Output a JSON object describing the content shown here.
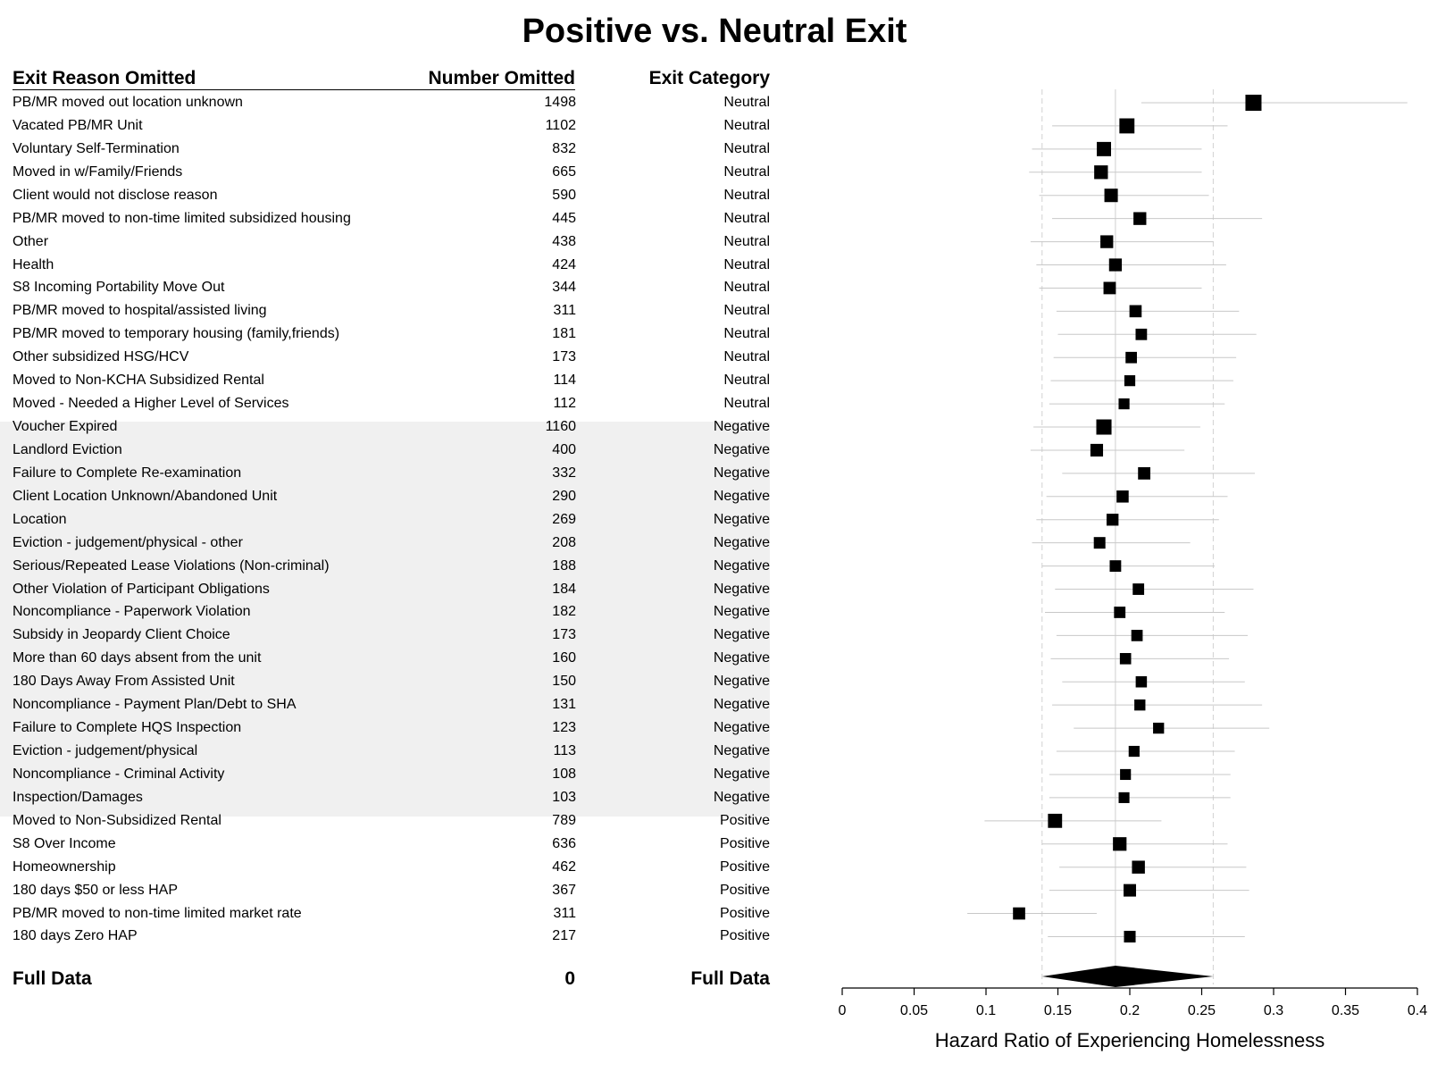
{
  "chart_data": {
    "type": "forest",
    "title": "Positive vs. Neutral Exit",
    "columns": {
      "reason": "Exit Reason Omitted",
      "number": "Number Omitted",
      "category": "Exit Category"
    },
    "rows": [
      {
        "reason": "PB/MR moved out location unknown",
        "number": "1498",
        "category": "Neutral",
        "hr": 0.286,
        "lo": 0.208,
        "hi": 0.393
      },
      {
        "reason": "Vacated PB/MR Unit",
        "number": "1102",
        "category": "Neutral",
        "hr": 0.198,
        "lo": 0.146,
        "hi": 0.268
      },
      {
        "reason": "Voluntary Self-Termination",
        "number": "832",
        "category": "Neutral",
        "hr": 0.182,
        "lo": 0.132,
        "hi": 0.25
      },
      {
        "reason": "Moved in w/Family/Friends",
        "number": "665",
        "category": "Neutral",
        "hr": 0.18,
        "lo": 0.13,
        "hi": 0.25
      },
      {
        "reason": "Client would not disclose reason",
        "number": "590",
        "category": "Neutral",
        "hr": 0.187,
        "lo": 0.137,
        "hi": 0.255
      },
      {
        "reason": "PB/MR moved to non-time limited subsidized housing",
        "number": "445",
        "category": "Neutral",
        "hr": 0.207,
        "lo": 0.146,
        "hi": 0.292
      },
      {
        "reason": "Other",
        "number": "438",
        "category": "Neutral",
        "hr": 0.184,
        "lo": 0.131,
        "hi": 0.258
      },
      {
        "reason": "Health",
        "number": "424",
        "category": "Neutral",
        "hr": 0.19,
        "lo": 0.135,
        "hi": 0.267
      },
      {
        "reason": "S8 Incoming Portability Move Out",
        "number": "344",
        "category": "Neutral",
        "hr": 0.186,
        "lo": 0.137,
        "hi": 0.25
      },
      {
        "reason": "PB/MR moved to hospital/assisted living",
        "number": "311",
        "category": "Neutral",
        "hr": 0.204,
        "lo": 0.149,
        "hi": 0.276
      },
      {
        "reason": "PB/MR moved to temporary housing (family,friends)",
        "number": "181",
        "category": "Neutral",
        "hr": 0.208,
        "lo": 0.15,
        "hi": 0.288
      },
      {
        "reason": "Other subsidized HSG/HCV",
        "number": "173",
        "category": "Neutral",
        "hr": 0.201,
        "lo": 0.147,
        "hi": 0.274
      },
      {
        "reason": "Moved to Non-KCHA Subsidized Rental",
        "number": "114",
        "category": "Neutral",
        "hr": 0.2,
        "lo": 0.145,
        "hi": 0.272
      },
      {
        "reason": "Moved - Needed a Higher Level of Services",
        "number": "112",
        "category": "Neutral",
        "hr": 0.196,
        "lo": 0.144,
        "hi": 0.266
      },
      {
        "reason": "Voucher Expired",
        "number": "1160",
        "category": "Negative",
        "hr": 0.182,
        "lo": 0.133,
        "hi": 0.249
      },
      {
        "reason": "Landlord Eviction",
        "number": "400",
        "category": "Negative",
        "hr": 0.177,
        "lo": 0.131,
        "hi": 0.238
      },
      {
        "reason": "Failure to Complete Re-examination",
        "number": "332",
        "category": "Negative",
        "hr": 0.21,
        "lo": 0.153,
        "hi": 0.287
      },
      {
        "reason": "Client Location Unknown/Abandoned Unit",
        "number": "290",
        "category": "Negative",
        "hr": 0.195,
        "lo": 0.142,
        "hi": 0.268
      },
      {
        "reason": "Location",
        "number": "269",
        "category": "Negative",
        "hr": 0.188,
        "lo": 0.135,
        "hi": 0.262
      },
      {
        "reason": "Eviction - judgement/physical - other",
        "number": "208",
        "category": "Negative",
        "hr": 0.179,
        "lo": 0.132,
        "hi": 0.242
      },
      {
        "reason": "Serious/Repeated Lease Violations (Non-criminal)",
        "number": "188",
        "category": "Negative",
        "hr": 0.19,
        "lo": 0.139,
        "hi": 0.259
      },
      {
        "reason": "Other Violation of Participant Obligations",
        "number": "184",
        "category": "Negative",
        "hr": 0.206,
        "lo": 0.148,
        "hi": 0.286
      },
      {
        "reason": "Noncompliance - Paperwork Violation",
        "number": "182",
        "category": "Negative",
        "hr": 0.193,
        "lo": 0.141,
        "hi": 0.266
      },
      {
        "reason": "Subsidy in Jeopardy Client Choice",
        "number": "173",
        "category": "Negative",
        "hr": 0.205,
        "lo": 0.149,
        "hi": 0.282
      },
      {
        "reason": "More than 60 days absent from the unit",
        "number": "160",
        "category": "Negative",
        "hr": 0.197,
        "lo": 0.145,
        "hi": 0.269
      },
      {
        "reason": "180 Days Away From Assisted Unit",
        "number": "150",
        "category": "Negative",
        "hr": 0.208,
        "lo": 0.153,
        "hi": 0.28
      },
      {
        "reason": "Noncompliance - Payment Plan/Debt to SHA",
        "number": "131",
        "category": "Negative",
        "hr": 0.207,
        "lo": 0.146,
        "hi": 0.292
      },
      {
        "reason": "Failure to Complete HQS Inspection",
        "number": "123",
        "category": "Negative",
        "hr": 0.22,
        "lo": 0.161,
        "hi": 0.297
      },
      {
        "reason": "Eviction - judgement/physical",
        "number": "113",
        "category": "Negative",
        "hr": 0.203,
        "lo": 0.149,
        "hi": 0.273
      },
      {
        "reason": "Noncompliance - Criminal Activity",
        "number": "108",
        "category": "Negative",
        "hr": 0.197,
        "lo": 0.144,
        "hi": 0.27
      },
      {
        "reason": "Inspection/Damages",
        "number": "103",
        "category": "Negative",
        "hr": 0.196,
        "lo": 0.144,
        "hi": 0.27
      },
      {
        "reason": "Moved to Non-Subsidized Rental",
        "number": "789",
        "category": "Positive",
        "hr": 0.148,
        "lo": 0.099,
        "hi": 0.222
      },
      {
        "reason": "S8 Over Income",
        "number": "636",
        "category": "Positive",
        "hr": 0.193,
        "lo": 0.139,
        "hi": 0.268
      },
      {
        "reason": "Homeownership",
        "number": "462",
        "category": "Positive",
        "hr": 0.206,
        "lo": 0.151,
        "hi": 0.281
      },
      {
        "reason": "180 days $50 or less HAP",
        "number": "367",
        "category": "Positive",
        "hr": 0.2,
        "lo": 0.144,
        "hi": 0.283
      },
      {
        "reason": "PB/MR moved to non-time limited market rate",
        "number": "311",
        "category": "Positive",
        "hr": 0.123,
        "lo": 0.087,
        "hi": 0.177
      },
      {
        "reason": "180 days Zero HAP",
        "number": "217",
        "category": "Positive",
        "hr": 0.2,
        "lo": 0.143,
        "hi": 0.28
      }
    ],
    "summary": {
      "reason": "Full Data",
      "number": "0",
      "category": "Full Data",
      "hr": 0.19,
      "lo": 0.139,
      "hi": 0.258
    },
    "x_ticks": [
      "0",
      "0.05",
      "0.1",
      "0.15",
      "0.2",
      "0.25",
      "0.3",
      "0.35",
      "0.4"
    ],
    "xlim": [
      0,
      0.4
    ],
    "xlabel": "Hazard Ratio of Experiencing Homelessness",
    "highlight_category": "Negative",
    "colors": {
      "band": "#f0f0f0",
      "ci_line": "#c8c8c8",
      "marker": "#000000",
      "ref_line": "#d0d0d0"
    }
  }
}
